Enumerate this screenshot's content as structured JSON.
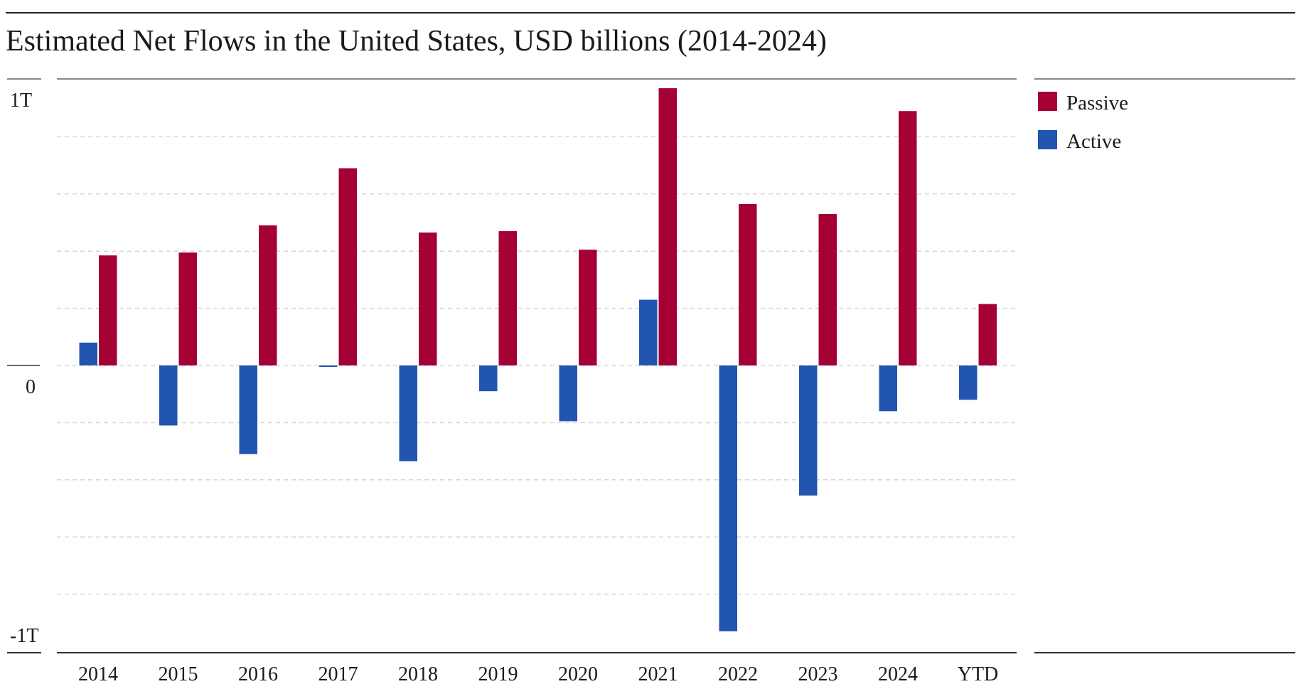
{
  "chart_data": {
    "type": "bar",
    "title": "Estimated Net Flows in the United States, USD billions (2014-2024)",
    "categories": [
      "2014",
      "2015",
      "2016",
      "2017",
      "2018",
      "2019",
      "2020",
      "2021",
      "2022",
      "2023",
      "2024",
      "YTD"
    ],
    "series": [
      {
        "name": "Active",
        "color": "#2155b0",
        "values": [
          80,
          -210,
          -310,
          -5,
          -335,
          -90,
          -195,
          230,
          -930,
          -455,
          -160,
          -120
        ]
      },
      {
        "name": "Passive",
        "color": "#a50034",
        "values": [
          385,
          395,
          490,
          690,
          465,
          470,
          405,
          970,
          565,
          530,
          890,
          215
        ]
      }
    ],
    "ylim": [
      -1000,
      1000
    ],
    "y_ticks": [
      {
        "value": 1000,
        "label": "1T"
      },
      {
        "value": 0,
        "label": "0"
      },
      {
        "value": -1000,
        "label": "-1T"
      }
    ],
    "grid": true,
    "legend_position": "right",
    "xlabel": "",
    "ylabel": ""
  }
}
